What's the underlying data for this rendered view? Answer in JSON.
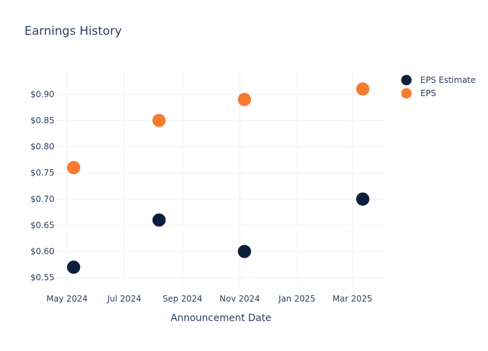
{
  "chart_data": {
    "type": "scatter",
    "title": "Earnings History",
    "xlabel": "Announcement Date",
    "ylabel": "",
    "x_ticks": [
      {
        "date": "2024-05-01",
        "label": "May 2024"
      },
      {
        "date": "2024-07-01",
        "label": "Jul 2024"
      },
      {
        "date": "2024-09-01",
        "label": "Sep 2024"
      },
      {
        "date": "2024-11-01",
        "label": "Nov 2024"
      },
      {
        "date": "2025-01-01",
        "label": "Jan 2025"
      },
      {
        "date": "2025-03-01",
        "label": "Mar 2025"
      }
    ],
    "y_ticks": [
      {
        "value": 0.55,
        "label": "$0.55"
      },
      {
        "value": 0.6,
        "label": "$0.60"
      },
      {
        "value": 0.65,
        "label": "$0.65"
      },
      {
        "value": 0.7,
        "label": "$0.70"
      },
      {
        "value": 0.75,
        "label": "$0.75"
      },
      {
        "value": 0.8,
        "label": "$0.80"
      },
      {
        "value": 0.85,
        "label": "$0.85"
      },
      {
        "value": 0.9,
        "label": "$0.90"
      }
    ],
    "xlim": [
      "2024-04-19",
      "2025-04-06"
    ],
    "ylim": [
      0.535,
      0.947
    ],
    "grid": true,
    "legend_position": "top-right",
    "series": [
      {
        "name": "EPS Estimate",
        "color": "#0d1f3c",
        "points": [
          {
            "x": "2024-05-08",
            "y": 0.57
          },
          {
            "x": "2024-08-07",
            "y": 0.66
          },
          {
            "x": "2024-11-06",
            "y": 0.6
          },
          {
            "x": "2025-03-12",
            "y": 0.7
          }
        ]
      },
      {
        "name": "EPS",
        "color": "#f47b30",
        "points": [
          {
            "x": "2024-05-08",
            "y": 0.76
          },
          {
            "x": "2024-08-07",
            "y": 0.85
          },
          {
            "x": "2024-11-06",
            "y": 0.89
          },
          {
            "x": "2025-03-12",
            "y": 0.91
          }
        ]
      }
    ]
  }
}
